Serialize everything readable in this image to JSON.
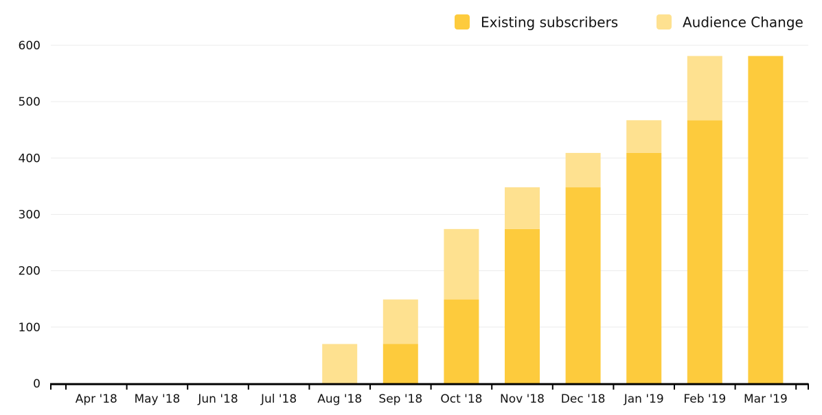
{
  "chart_data": {
    "type": "bar",
    "stacked": true,
    "categories": [
      "Apr '18",
      "May '18",
      "Jun '18",
      "Jul '18",
      "Aug '18",
      "Sep '18",
      "Oct '18",
      "Nov '18",
      "Dec '18",
      "Jan '19",
      "Feb '19",
      "Mar '19"
    ],
    "series": [
      {
        "name": "Existing subscribers",
        "color": "#FDCB3D",
        "values": [
          0,
          0,
          0,
          0,
          0,
          70,
          149,
          274,
          348,
          409,
          467,
          581
        ]
      },
      {
        "name": "Audience Change",
        "color": "#FEE190",
        "values": [
          0,
          0,
          0,
          0,
          70,
          79,
          125,
          74,
          61,
          58,
          114,
          0
        ]
      }
    ],
    "y_ticks": [
      "0",
      "100",
      "200",
      "300",
      "400",
      "500",
      "600"
    ],
    "ylim": [
      0,
      600
    ],
    "grid": true,
    "legend_position": "top-right",
    "axis_color": "#000000",
    "grid_color": "#ebebeb"
  }
}
